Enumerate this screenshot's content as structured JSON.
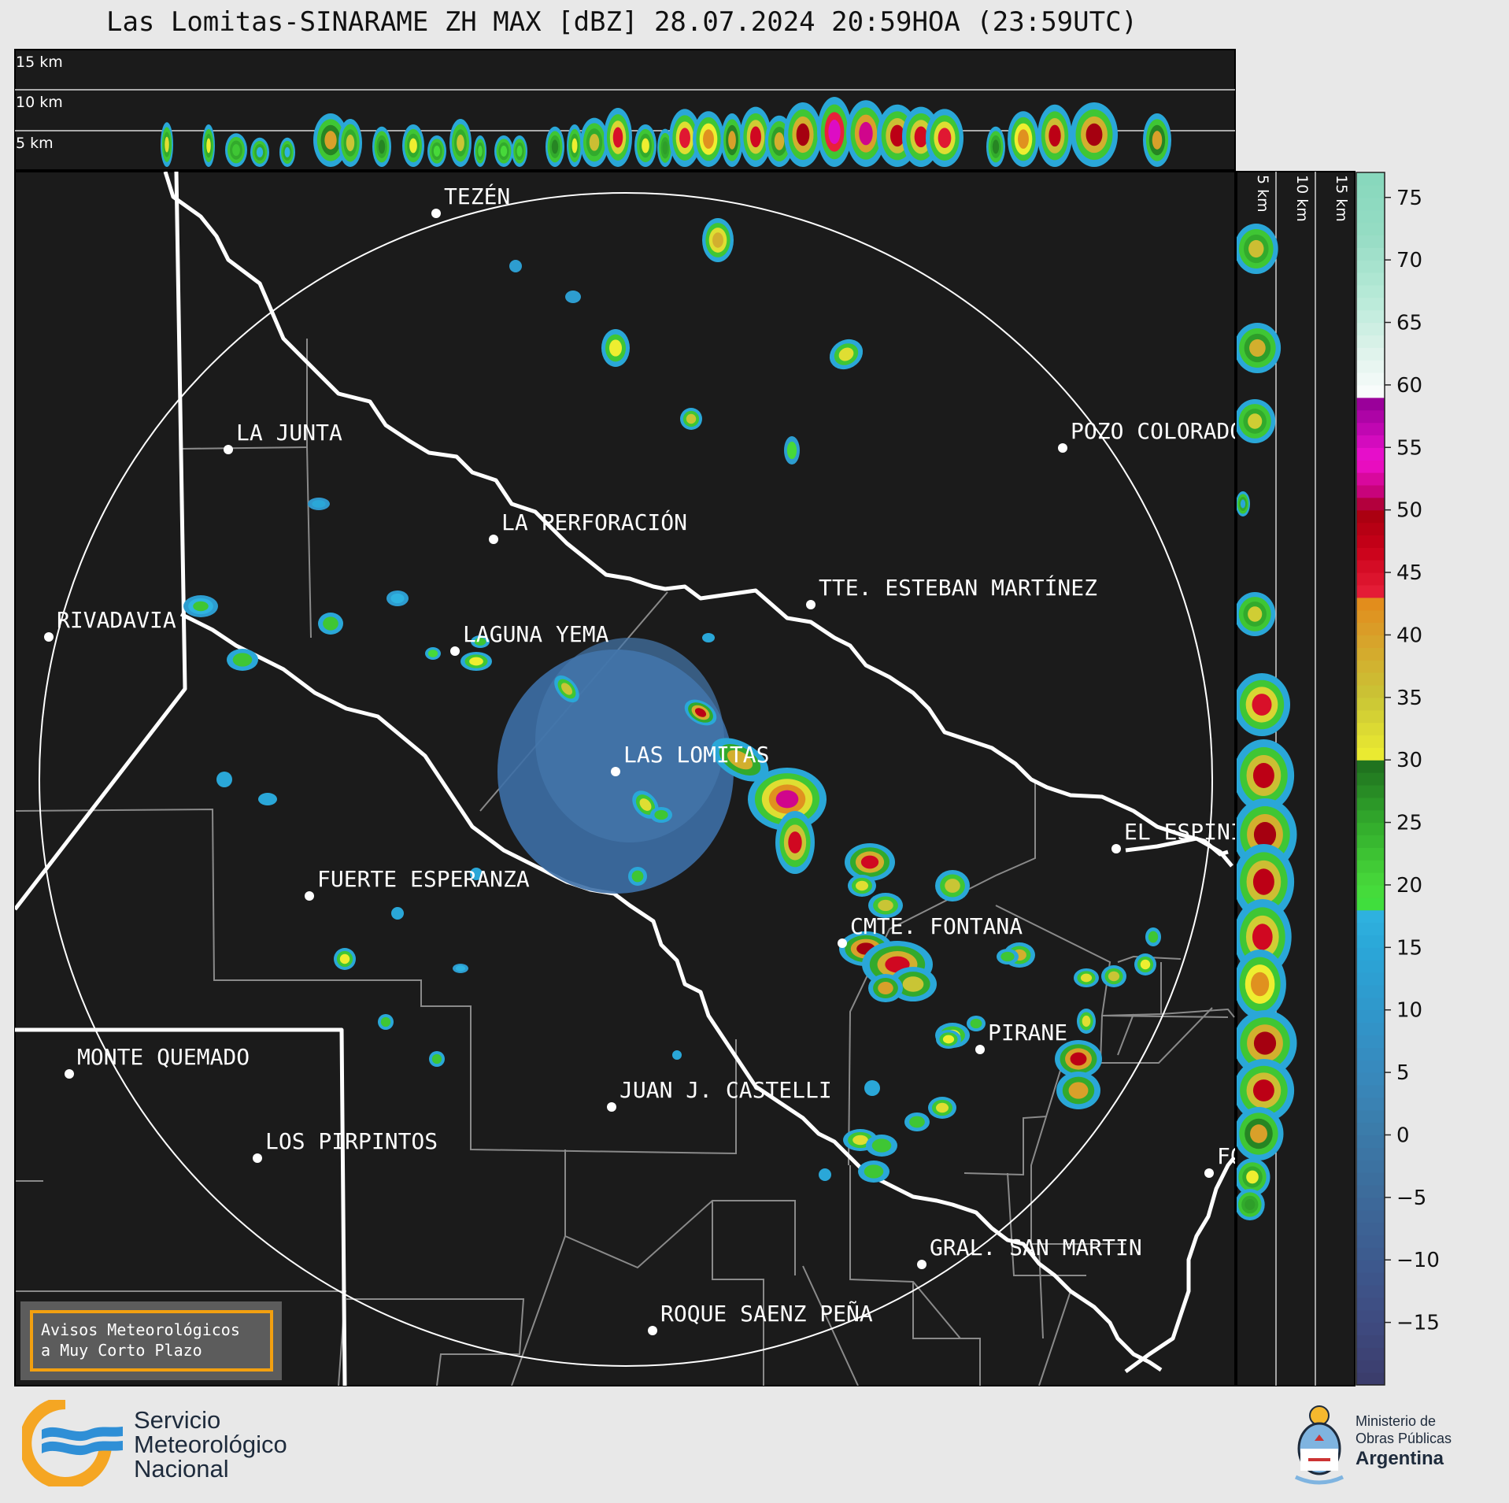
{
  "title": "Las Lomitas-SINARAME ZH MAX [dBZ] 28.07.2024 20:59HOA (23:59UTC)",
  "top_panel": {
    "height_labels": [
      "15 km",
      "10 km",
      "5 km"
    ]
  },
  "side_panel": {
    "height_labels": [
      "5 km",
      "10 km",
      "15 km"
    ]
  },
  "colorbar": {
    "ticks": [
      75,
      70,
      65,
      60,
      55,
      50,
      45,
      40,
      35,
      30,
      25,
      20,
      15,
      10,
      5,
      0,
      -5,
      -10,
      -15
    ],
    "tick_labels": [
      "75",
      "70",
      "65",
      "60",
      "55",
      "50",
      "45",
      "40",
      "35",
      "30",
      "25",
      "20",
      "15",
      "10",
      "5",
      "0",
      "−5",
      "−10",
      "−15"
    ],
    "range": [
      -20,
      77
    ],
    "unit": "dBZ"
  },
  "places": [
    {
      "name": "TEZÉN"
    },
    {
      "name": "LA JUNTA"
    },
    {
      "name": "POZO COLORADO"
    },
    {
      "name": "LA PERFORACIÓN"
    },
    {
      "name": "TTE. ESTEBAN MARTÍNEZ"
    },
    {
      "name": "RIVADAVIA"
    },
    {
      "name": "LAGUNA YEMA"
    },
    {
      "name": "LAS LOMITAS"
    },
    {
      "name": "EL ESPINILLO"
    },
    {
      "name": "FUERTE ESPERANZA"
    },
    {
      "name": "CMTE. FONTANA"
    },
    {
      "name": "PIRANE"
    },
    {
      "name": "MONTE QUEMADO"
    },
    {
      "name": "JUAN J. CASTELLI"
    },
    {
      "name": "LOS PIRPINTOS"
    },
    {
      "name": "GRAL. SAN MARTIN"
    },
    {
      "name": "ROQUE SAENZ PEÑA"
    },
    {
      "name": "FORMOSA"
    }
  ],
  "alert_box": {
    "line1": "Avisos Meteorológicos",
    "line2": "a Muy Corto Plazo"
  },
  "footer": {
    "smn": [
      "Servicio",
      "Meteorológico",
      "Nacional"
    ],
    "ministry": [
      "Ministerio de",
      "Obras Públicas",
      "Argentina"
    ]
  }
}
